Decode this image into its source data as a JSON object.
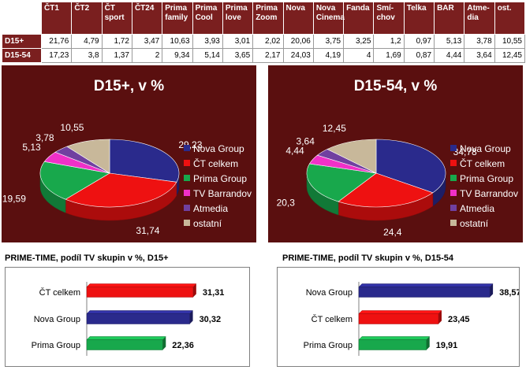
{
  "table": {
    "columns": [
      "ČT1",
      "ČT2",
      "ČT sport",
      "ČT24",
      "Prima family",
      "Prima Cool",
      "Prima love",
      "Prima Zoom",
      "Nova",
      "Nova Cinema",
      "Fanda",
      "Smí-chov",
      "Telka",
      "BAR",
      "Atme-dia",
      "ost."
    ],
    "rows": [
      {
        "label": "D15+",
        "values": [
          "21,76",
          "4,79",
          "1,72",
          "3,47",
          "10,63",
          "3,93",
          "3,01",
          "2,02",
          "20,06",
          "3,75",
          "3,25",
          "1,2",
          "0,97",
          "5,13",
          "3,78",
          "10,55"
        ]
      },
      {
        "label": "D15-54",
        "values": [
          "17,23",
          "3,8",
          "1,37",
          "2",
          "9,34",
          "5,14",
          "3,65",
          "2,17",
          "24,03",
          "4,19",
          "4",
          "1,69",
          "0,87",
          "4,44",
          "3,64",
          "12,45"
        ]
      }
    ]
  },
  "colors": {
    "panel_bg": "#5a0f0f",
    "table_header": "#7a1f1f",
    "nova": "#2a2a8c",
    "ct": "#ee1111",
    "prima": "#18a84c",
    "barrandov": "#f030c8",
    "atmedia": "#7040a0",
    "ostatni": "#c8b89a"
  },
  "chart_data": [
    {
      "type": "pie",
      "title": "D15+, v %",
      "legend_position": "right",
      "labels": [
        "Nova Group",
        "ČT celkem",
        "Prima Group",
        "TV Barrandov",
        "Atmedia",
        "ostatní"
      ],
      "values": [
        29.23,
        31.74,
        19.59,
        5.13,
        3.78,
        10.55
      ],
      "value_labels": [
        "29,23",
        "31,74",
        "19,59",
        "5,13",
        "3,78",
        "10,55"
      ]
    },
    {
      "type": "pie",
      "title": "D15-54, v %",
      "legend_position": "right",
      "labels": [
        "Nova Group",
        "ČT celkem",
        "Prima Group",
        "TV Barrandov",
        "Atmedia",
        "ostatní"
      ],
      "values": [
        34.78,
        24.4,
        20.3,
        4.44,
        3.64,
        12.45
      ],
      "value_labels": [
        "34,78",
        "24,4",
        "20,3",
        "4,44",
        "3,64",
        "12,45"
      ]
    },
    {
      "type": "bar",
      "orientation": "horizontal",
      "title": "PRIME-TIME, podíl TV skupin v %, D15+",
      "categories": [
        "ČT celkem",
        "Nova Group",
        "Prima Group"
      ],
      "values": [
        31.31,
        30.32,
        22.36
      ],
      "value_labels": [
        "31,31",
        "30,32",
        "22,36"
      ],
      "xlim": [
        0,
        40
      ]
    },
    {
      "type": "bar",
      "orientation": "horizontal",
      "title": "PRIME-TIME, podíl TV skupin v %, D15-54",
      "categories": [
        "Nova Group",
        "ČT celkem",
        "Prima Group"
      ],
      "values": [
        38.57,
        23.45,
        19.91
      ],
      "value_labels": [
        "38,57",
        "23,45",
        "19,91"
      ],
      "xlim": [
        0,
        40
      ]
    }
  ]
}
